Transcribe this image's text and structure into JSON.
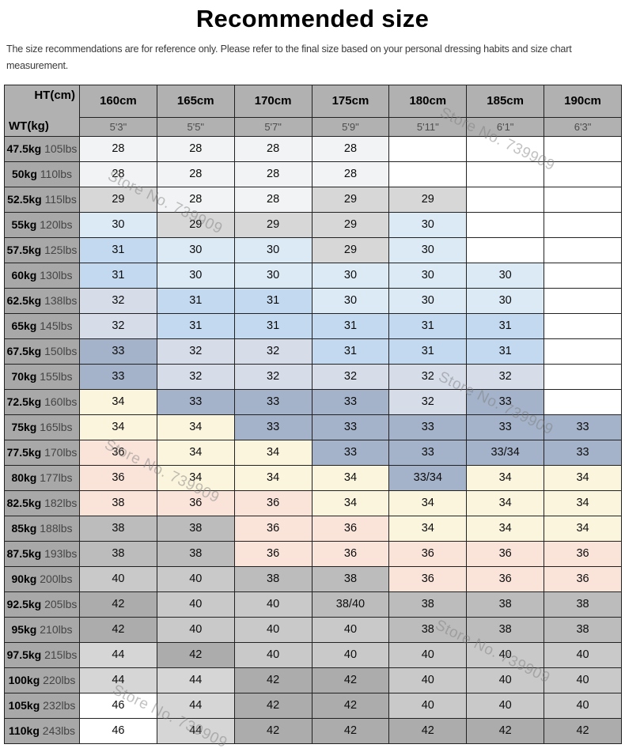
{
  "title": "Recommended size",
  "disclaimer": "The size recommendations are for reference only. Please refer to the final size based on your personal dressing habits and size chart measurement.",
  "watermark": {
    "text": "Store No. 739909"
  },
  "table": {
    "corner": {
      "top_right": "HT(cm)",
      "bottom_left": "WT(kg)"
    },
    "height_columns": [
      {
        "cm": "160cm",
        "ft": "5'3\""
      },
      {
        "cm": "165cm",
        "ft": "5'5\""
      },
      {
        "cm": "170cm",
        "ft": "5'7\""
      },
      {
        "cm": "175cm",
        "ft": "5'9\""
      },
      {
        "cm": "180cm",
        "ft": "5'11\""
      },
      {
        "cm": "185cm",
        "ft": "6'1\""
      },
      {
        "cm": "190cm",
        "ft": "6'3\""
      }
    ],
    "palette": {
      "w": "#ffffff",
      "c28": "#f2f3f4",
      "c29": "#d7d7d7",
      "c30": "#dceaf6",
      "c31": "#c3d9ef",
      "c32": "#d6dde9",
      "c33": "#a4b3ca",
      "c34": "#fbf5dd",
      "c36": "#fae4da",
      "c38": "#bcbcbc",
      "c40": "#c9c9c9",
      "c42": "#acacac",
      "c44": "#d6d6d6"
    },
    "rows": [
      {
        "kg": "47.5kg",
        "lbs": "105lbs",
        "cells": [
          {
            "v": "28",
            "c": "c28"
          },
          {
            "v": "28",
            "c": "c28"
          },
          {
            "v": "28",
            "c": "c28"
          },
          {
            "v": "28",
            "c": "c28"
          },
          {
            "v": "",
            "c": "w"
          },
          {
            "v": "",
            "c": "w"
          },
          {
            "v": "",
            "c": "w"
          }
        ]
      },
      {
        "kg": "50kg",
        "lbs": "110lbs",
        "cells": [
          {
            "v": "28",
            "c": "c28"
          },
          {
            "v": "28",
            "c": "c28"
          },
          {
            "v": "28",
            "c": "c28"
          },
          {
            "v": "28",
            "c": "c28"
          },
          {
            "v": "",
            "c": "w"
          },
          {
            "v": "",
            "c": "w"
          },
          {
            "v": "",
            "c": "w"
          }
        ]
      },
      {
        "kg": "52.5kg",
        "lbs": "115lbs",
        "cells": [
          {
            "v": "29",
            "c": "c29"
          },
          {
            "v": "28",
            "c": "c28"
          },
          {
            "v": "28",
            "c": "c28"
          },
          {
            "v": "29",
            "c": "c29"
          },
          {
            "v": "29",
            "c": "c29"
          },
          {
            "v": "",
            "c": "w"
          },
          {
            "v": "",
            "c": "w"
          }
        ]
      },
      {
        "kg": "55kg",
        "lbs": "120lbs",
        "cells": [
          {
            "v": "30",
            "c": "c30"
          },
          {
            "v": "29",
            "c": "c29"
          },
          {
            "v": "29",
            "c": "c29"
          },
          {
            "v": "29",
            "c": "c29"
          },
          {
            "v": "30",
            "c": "c30"
          },
          {
            "v": "",
            "c": "w"
          },
          {
            "v": "",
            "c": "w"
          }
        ]
      },
      {
        "kg": "57.5kg",
        "lbs": "125lbs",
        "cells": [
          {
            "v": "31",
            "c": "c31"
          },
          {
            "v": "30",
            "c": "c30"
          },
          {
            "v": "30",
            "c": "c30"
          },
          {
            "v": "29",
            "c": "c29"
          },
          {
            "v": "30",
            "c": "c30"
          },
          {
            "v": "",
            "c": "w"
          },
          {
            "v": "",
            "c": "w"
          }
        ]
      },
      {
        "kg": "60kg",
        "lbs": "130lbs",
        "cells": [
          {
            "v": "31",
            "c": "c31"
          },
          {
            "v": "30",
            "c": "c30"
          },
          {
            "v": "30",
            "c": "c30"
          },
          {
            "v": "30",
            "c": "c30"
          },
          {
            "v": "30",
            "c": "c30"
          },
          {
            "v": "30",
            "c": "c30"
          },
          {
            "v": "",
            "c": "w"
          }
        ]
      },
      {
        "kg": "62.5kg",
        "lbs": "138lbs",
        "cells": [
          {
            "v": "32",
            "c": "c32"
          },
          {
            "v": "31",
            "c": "c31"
          },
          {
            "v": "31",
            "c": "c31"
          },
          {
            "v": "30",
            "c": "c30"
          },
          {
            "v": "30",
            "c": "c30"
          },
          {
            "v": "30",
            "c": "c30"
          },
          {
            "v": "",
            "c": "w"
          }
        ]
      },
      {
        "kg": "65kg",
        "lbs": "145lbs",
        "cells": [
          {
            "v": "32",
            "c": "c32"
          },
          {
            "v": "31",
            "c": "c31"
          },
          {
            "v": "31",
            "c": "c31"
          },
          {
            "v": "31",
            "c": "c31"
          },
          {
            "v": "31",
            "c": "c31"
          },
          {
            "v": "31",
            "c": "c31"
          },
          {
            "v": "",
            "c": "w"
          }
        ]
      },
      {
        "kg": "67.5kg",
        "lbs": "150lbs",
        "cells": [
          {
            "v": "33",
            "c": "c33"
          },
          {
            "v": "32",
            "c": "c32"
          },
          {
            "v": "32",
            "c": "c32"
          },
          {
            "v": "31",
            "c": "c31"
          },
          {
            "v": "31",
            "c": "c31"
          },
          {
            "v": "31",
            "c": "c31"
          },
          {
            "v": "",
            "c": "w"
          }
        ]
      },
      {
        "kg": "70kg",
        "lbs": "155lbs",
        "cells": [
          {
            "v": "33",
            "c": "c33"
          },
          {
            "v": "32",
            "c": "c32"
          },
          {
            "v": "32",
            "c": "c32"
          },
          {
            "v": "32",
            "c": "c32"
          },
          {
            "v": "32",
            "c": "c32"
          },
          {
            "v": "32",
            "c": "c32"
          },
          {
            "v": "",
            "c": "w"
          }
        ]
      },
      {
        "kg": "72.5kg",
        "lbs": "160lbs",
        "cells": [
          {
            "v": "34",
            "c": "c34"
          },
          {
            "v": "33",
            "c": "c33"
          },
          {
            "v": "33",
            "c": "c33"
          },
          {
            "v": "33",
            "c": "c33"
          },
          {
            "v": "32",
            "c": "c32"
          },
          {
            "v": "33",
            "c": "c33"
          },
          {
            "v": "",
            "c": "w"
          }
        ]
      },
      {
        "kg": "75kg",
        "lbs": "165lbs",
        "cells": [
          {
            "v": "34",
            "c": "c34"
          },
          {
            "v": "34",
            "c": "c34"
          },
          {
            "v": "33",
            "c": "c33"
          },
          {
            "v": "33",
            "c": "c33"
          },
          {
            "v": "33",
            "c": "c33"
          },
          {
            "v": "33",
            "c": "c33"
          },
          {
            "v": "33",
            "c": "c33"
          }
        ]
      },
      {
        "kg": "77.5kg",
        "lbs": "170lbs",
        "cells": [
          {
            "v": "36",
            "c": "c36"
          },
          {
            "v": "34",
            "c": "c34"
          },
          {
            "v": "34",
            "c": "c34"
          },
          {
            "v": "33",
            "c": "c33"
          },
          {
            "v": "33",
            "c": "c33"
          },
          {
            "v": "33/34",
            "c": "c33"
          },
          {
            "v": "33",
            "c": "c33"
          }
        ]
      },
      {
        "kg": "80kg",
        "lbs": "177lbs",
        "cells": [
          {
            "v": "36",
            "c": "c36"
          },
          {
            "v": "34",
            "c": "c34"
          },
          {
            "v": "34",
            "c": "c34"
          },
          {
            "v": "34",
            "c": "c34"
          },
          {
            "v": "33/34",
            "c": "c33"
          },
          {
            "v": "34",
            "c": "c34"
          },
          {
            "v": "34",
            "c": "c34"
          }
        ]
      },
      {
        "kg": "82.5kg",
        "lbs": "182lbs",
        "cells": [
          {
            "v": "38",
            "c": "c36"
          },
          {
            "v": "36",
            "c": "c36"
          },
          {
            "v": "36",
            "c": "c36"
          },
          {
            "v": "34",
            "c": "c34"
          },
          {
            "v": "34",
            "c": "c34"
          },
          {
            "v": "34",
            "c": "c34"
          },
          {
            "v": "34",
            "c": "c34"
          }
        ]
      },
      {
        "kg": "85kg",
        "lbs": "188lbs",
        "cells": [
          {
            "v": "38",
            "c": "c38"
          },
          {
            "v": "38",
            "c": "c38"
          },
          {
            "v": "36",
            "c": "c36"
          },
          {
            "v": "36",
            "c": "c36"
          },
          {
            "v": "34",
            "c": "c34"
          },
          {
            "v": "34",
            "c": "c34"
          },
          {
            "v": "34",
            "c": "c34"
          }
        ]
      },
      {
        "kg": "87.5kg",
        "lbs": "193lbs",
        "cells": [
          {
            "v": "38",
            "c": "c38"
          },
          {
            "v": "38",
            "c": "c38"
          },
          {
            "v": "36",
            "c": "c36"
          },
          {
            "v": "36",
            "c": "c36"
          },
          {
            "v": "36",
            "c": "c36"
          },
          {
            "v": "36",
            "c": "c36"
          },
          {
            "v": "36",
            "c": "c36"
          }
        ]
      },
      {
        "kg": "90kg",
        "lbs": "200lbs",
        "cells": [
          {
            "v": "40",
            "c": "c40"
          },
          {
            "v": "40",
            "c": "c40"
          },
          {
            "v": "38",
            "c": "c38"
          },
          {
            "v": "38",
            "c": "c38"
          },
          {
            "v": "36",
            "c": "c36"
          },
          {
            "v": "36",
            "c": "c36"
          },
          {
            "v": "36",
            "c": "c36"
          }
        ]
      },
      {
        "kg": "92.5kg",
        "lbs": "205lbs",
        "cells": [
          {
            "v": "42",
            "c": "c42"
          },
          {
            "v": "40",
            "c": "c40"
          },
          {
            "v": "40",
            "c": "c40"
          },
          {
            "v": "38/40",
            "c": "c38"
          },
          {
            "v": "38",
            "c": "c38"
          },
          {
            "v": "38",
            "c": "c38"
          },
          {
            "v": "38",
            "c": "c38"
          }
        ]
      },
      {
        "kg": "95kg",
        "lbs": "210lbs",
        "cells": [
          {
            "v": "42",
            "c": "c42"
          },
          {
            "v": "40",
            "c": "c40"
          },
          {
            "v": "40",
            "c": "c40"
          },
          {
            "v": "40",
            "c": "c40"
          },
          {
            "v": "38",
            "c": "c38"
          },
          {
            "v": "38",
            "c": "c38"
          },
          {
            "v": "38",
            "c": "c38"
          }
        ]
      },
      {
        "kg": "97.5kg",
        "lbs": "215lbs",
        "cells": [
          {
            "v": "44",
            "c": "c44"
          },
          {
            "v": "42",
            "c": "c42"
          },
          {
            "v": "40",
            "c": "c40"
          },
          {
            "v": "40",
            "c": "c40"
          },
          {
            "v": "40",
            "c": "c40"
          },
          {
            "v": "40",
            "c": "c40"
          },
          {
            "v": "40",
            "c": "c40"
          }
        ]
      },
      {
        "kg": "100kg",
        "lbs": "220lbs",
        "cells": [
          {
            "v": "44",
            "c": "c44"
          },
          {
            "v": "44",
            "c": "c44"
          },
          {
            "v": "42",
            "c": "c42"
          },
          {
            "v": "42",
            "c": "c42"
          },
          {
            "v": "40",
            "c": "c40"
          },
          {
            "v": "40",
            "c": "c40"
          },
          {
            "v": "40",
            "c": "c40"
          }
        ]
      },
      {
        "kg": "105kg",
        "lbs": "232lbs",
        "cells": [
          {
            "v": "46",
            "c": "w"
          },
          {
            "v": "44",
            "c": "c44"
          },
          {
            "v": "42",
            "c": "c42"
          },
          {
            "v": "42",
            "c": "c42"
          },
          {
            "v": "40",
            "c": "c40"
          },
          {
            "v": "40",
            "c": "c40"
          },
          {
            "v": "40",
            "c": "c40"
          }
        ]
      },
      {
        "kg": "110kg",
        "lbs": "243lbs",
        "cells": [
          {
            "v": "46",
            "c": "w"
          },
          {
            "v": "44",
            "c": "c44"
          },
          {
            "v": "42",
            "c": "c42"
          },
          {
            "v": "42",
            "c": "c42"
          },
          {
            "v": "42",
            "c": "c42"
          },
          {
            "v": "42",
            "c": "c42"
          },
          {
            "v": "42",
            "c": "c42"
          }
        ]
      }
    ]
  }
}
